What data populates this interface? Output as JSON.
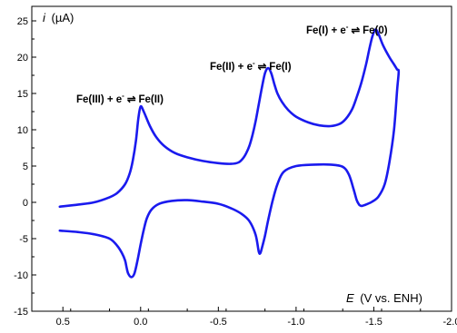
{
  "chart_data": {
    "type": "line",
    "title": "",
    "ylabel": {
      "symbol": "i",
      "unit": "(µA)"
    },
    "xlabel": {
      "symbol": "E",
      "unit": "(V vs. ENH)"
    },
    "xlim": [
      0.7,
      -2.0
    ],
    "ylim": [
      -15,
      27
    ],
    "x_ticks": [
      0.5,
      0.0,
      -0.5,
      -1.0,
      -1.5,
      -2.0
    ],
    "x_tick_labels": [
      "0.5",
      "0.0",
      "-0.5",
      "-1.0",
      "-1.5",
      "-2.0"
    ],
    "y_ticks": [
      -15,
      -10,
      -5,
      0,
      5,
      10,
      15,
      20,
      25
    ],
    "y_tick_labels": [
      "-15",
      "-10",
      "-5",
      "0",
      "5",
      "10",
      "15",
      "20",
      "25"
    ],
    "grid": false,
    "series": [
      {
        "color": "#1a1aee",
        "x": [
          0.52,
          0.4,
          0.3,
          0.2,
          0.15,
          0.1,
          0.07,
          0.05,
          0.03,
          0.015,
          0.0,
          -0.02,
          -0.06,
          -0.1,
          -0.15,
          -0.22,
          -0.3,
          -0.4,
          -0.5,
          -0.58,
          -0.63,
          -0.66,
          -0.68,
          -0.7,
          -0.72,
          -0.74,
          -0.76,
          -0.78,
          -0.8,
          -0.82,
          -0.84,
          -0.86,
          -0.88,
          -0.91,
          -0.95,
          -1.0,
          -1.08,
          -1.15,
          -1.22,
          -1.28,
          -1.32,
          -1.36,
          -1.39,
          -1.42,
          -1.45,
          -1.47,
          -1.49,
          -1.51,
          -1.53,
          -1.56,
          -1.6,
          -1.63,
          -1.65,
          -1.66,
          -1.65,
          -1.63,
          -1.6,
          -1.57,
          -1.53,
          -1.49,
          -1.45,
          -1.43,
          -1.42,
          -1.41,
          -1.405,
          -1.39,
          -1.37,
          -1.34,
          -1.3,
          -1.22,
          -1.12,
          -1.0,
          -0.92,
          -0.88,
          -0.85,
          -0.82,
          -0.8,
          -0.78,
          -0.77,
          -0.76,
          -0.74,
          -0.7,
          -0.65,
          -0.58,
          -0.5,
          -0.4,
          -0.3,
          -0.2,
          -0.12,
          -0.07,
          -0.04,
          -0.02,
          0.0,
          0.02,
          0.04,
          0.06,
          0.08,
          0.09,
          0.1,
          0.12,
          0.15,
          0.2,
          0.3,
          0.4,
          0.52
        ],
        "y": [
          -0.6,
          -0.3,
          0.0,
          0.7,
          1.3,
          2.5,
          4.0,
          5.8,
          8.5,
          11.5,
          13.2,
          12.5,
          10.5,
          9.0,
          7.8,
          6.8,
          6.2,
          5.7,
          5.4,
          5.3,
          5.5,
          6.1,
          6.8,
          7.8,
          9.3,
          11.2,
          13.5,
          15.8,
          17.8,
          18.5,
          17.8,
          16.3,
          15.0,
          13.8,
          12.7,
          11.8,
          11.0,
          10.6,
          10.5,
          10.8,
          11.5,
          12.8,
          14.5,
          16.5,
          19.0,
          21.0,
          22.8,
          23.8,
          23.2,
          21.6,
          20.0,
          19.0,
          18.3,
          18.0,
          15.5,
          10.0,
          5.5,
          2.5,
          0.8,
          0.1,
          -0.3,
          -0.45,
          -0.5,
          -0.4,
          -0.3,
          0.3,
          1.8,
          3.8,
          4.9,
          5.2,
          5.2,
          5.0,
          4.2,
          2.5,
          0.3,
          -2.5,
          -4.6,
          -6.3,
          -7.0,
          -6.8,
          -4.5,
          -2.6,
          -1.6,
          -0.8,
          -0.2,
          0.1,
          0.3,
          0.2,
          -0.2,
          -1.0,
          -2.2,
          -3.8,
          -5.8,
          -8.0,
          -9.8,
          -10.3,
          -9.8,
          -9.0,
          -8.0,
          -7.0,
          -6.0,
          -5.0,
          -4.4,
          -4.1,
          -3.9
        ]
      }
    ],
    "annotations": [
      {
        "text_main": "Fe(III) + e",
        "sup": "-",
        "arrow": "⇌",
        "text_tail": "Fe(II)",
        "at": [
          0.27,
          13.5
        ]
      },
      {
        "text_main": "Fe(II) + e",
        "sup": "-",
        "arrow": "⇌",
        "text_tail": "Fe(I)",
        "at": [
          -0.5,
          18.8
        ]
      },
      {
        "text_main": "Fe(I) + e",
        "sup": "-",
        "arrow": "⇌",
        "text_tail": "Fe(0)",
        "at": [
          -1.3,
          24.5
        ]
      }
    ]
  }
}
